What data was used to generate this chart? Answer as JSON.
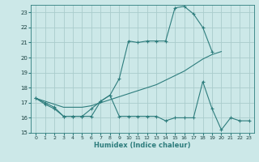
{
  "xlabel": "Humidex (Indice chaleur)",
  "xlim": [
    -0.5,
    23.5
  ],
  "ylim": [
    15,
    23.5
  ],
  "yticks": [
    15,
    16,
    17,
    18,
    19,
    20,
    21,
    22,
    23
  ],
  "xticks": [
    0,
    1,
    2,
    3,
    4,
    5,
    6,
    7,
    8,
    9,
    10,
    11,
    12,
    13,
    14,
    15,
    16,
    17,
    18,
    19,
    20,
    21,
    22,
    23
  ],
  "xtick_labels": [
    "0",
    "1",
    "2",
    "3",
    "4",
    "5",
    "6",
    "7",
    "8",
    "9",
    "10",
    "11",
    "12",
    "13",
    "14",
    "15",
    "16",
    "17",
    "18",
    "19",
    "20",
    "21",
    "22",
    "23"
  ],
  "bg_color": "#cce8e8",
  "grid_color": "#aacccc",
  "line_color": "#2e7d7d",
  "line1_x": [
    0,
    1,
    2,
    3,
    4,
    5,
    6,
    7,
    8,
    9,
    10,
    11,
    12,
    13,
    14,
    15,
    16,
    17,
    18,
    19
  ],
  "line1_y": [
    17.3,
    17.0,
    16.7,
    16.1,
    16.1,
    16.1,
    16.1,
    17.1,
    17.5,
    18.6,
    21.1,
    21.0,
    21.1,
    21.1,
    21.1,
    23.3,
    23.4,
    22.9,
    22.0,
    20.4
  ],
  "line2_x": [
    0,
    1,
    2,
    3,
    4,
    5,
    6,
    7,
    8,
    9,
    10,
    11,
    12,
    13,
    14,
    15,
    16,
    17,
    18,
    19,
    20
  ],
  "line2_y": [
    17.3,
    17.1,
    16.9,
    16.7,
    16.7,
    16.7,
    16.8,
    17.0,
    17.2,
    17.4,
    17.6,
    17.8,
    18.0,
    18.2,
    18.5,
    18.8,
    19.1,
    19.5,
    19.9,
    20.2,
    20.4
  ],
  "line3_x": [
    0,
    1,
    2,
    3,
    4,
    5,
    6,
    7,
    8,
    9,
    10,
    11,
    12,
    13,
    14,
    15,
    16,
    17,
    18,
    19,
    20,
    21,
    22,
    23
  ],
  "line3_y": [
    17.3,
    16.9,
    16.6,
    16.1,
    16.1,
    16.1,
    16.6,
    17.1,
    17.5,
    16.1,
    16.1,
    16.1,
    16.1,
    16.1,
    15.8,
    16.0,
    16.0,
    16.0,
    18.4,
    16.6,
    15.2,
    16.0,
    15.8,
    15.8
  ]
}
